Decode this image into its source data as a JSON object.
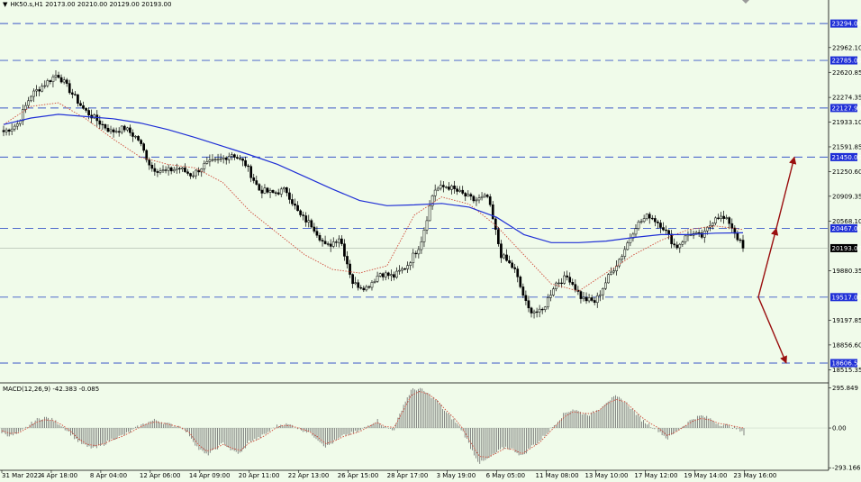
{
  "header": {
    "symbol_line": "HK50.s,H1  20173.00 20210.00 20129.00 20193.00"
  },
  "macd": {
    "label": "MACD(12,26,9) -42.383 -0.085"
  },
  "colors": {
    "background": "#f0fbea",
    "candle": "#000000",
    "ma_slow": "#1f2fd6",
    "ma_fast": "#d04b3a",
    "level_line": "#3a57c8",
    "level_box": "#1f2fd6",
    "arrow": "#9a0f0f",
    "macd_signal": "#d04b3a",
    "macd_hist": "#6a6a6a"
  },
  "chart_data": [
    {
      "type": "candlestick",
      "name": "HK50.s,H1",
      "ylim": [
        18515.35,
        23466
      ],
      "y_ticks": [
        "22962.10",
        "22620.85",
        "22274.35",
        "21933.10",
        "21591.85",
        "21250.60",
        "20909.35",
        "20568.10",
        "19880.35",
        "19197.85",
        "18856.60",
        "18515.35"
      ],
      "x_ticks": [
        "31 Mar 2022",
        "4 Apr 18:00",
        "8 Apr 04:00",
        "12 Apr 06:00",
        "14 Apr 09:00",
        "20 Apr 11:00",
        "22 Apr 13:00",
        "26 Apr 15:00",
        "28 Apr 17:00",
        "3 May 19:00",
        "6 May 05:00",
        "11 May 08:00",
        "13 May 10:00",
        "17 May 12:00",
        "19 May 14:00",
        "23 May 16:00"
      ],
      "levels": [
        23294.0,
        22785.0,
        22127.93,
        21450.0,
        20467.0,
        19517.0,
        18606.58
      ],
      "current_price": 20193.0,
      "path_close": [
        21800,
        21900,
        22300,
        22450,
        22600,
        22350,
        22100,
        21950,
        21800,
        21850,
        21700,
        21300,
        21250,
        21300,
        21200,
        21350,
        21400,
        21500,
        21350,
        21000,
        20950,
        21000,
        20650,
        20500,
        20200,
        20350,
        19700,
        19650,
        19850,
        19800,
        19950,
        20250,
        21000,
        21050,
        20950,
        20850,
        20900,
        20100,
        19900,
        19350,
        19300,
        19700,
        19800,
        19500,
        19450,
        19800,
        20100,
        20500,
        20650,
        20500,
        20200,
        20400,
        20350,
        20650,
        20550,
        20193
      ],
      "ma_slow": [
        21900,
        21990,
        22040,
        22010,
        21980,
        21920,
        21830,
        21720,
        21600,
        21480,
        21350,
        21180,
        21010,
        20850,
        20780,
        20790,
        20810,
        20760,
        20620,
        20380,
        20270,
        20270,
        20290,
        20340,
        20380,
        20380,
        20400,
        20405
      ],
      "ma_fast": [
        21900,
        22150,
        22200,
        21980,
        21700,
        21450,
        21350,
        21300,
        21100,
        20700,
        20400,
        20100,
        19900,
        19850,
        19950,
        20650,
        20900,
        20800,
        20500,
        20100,
        19700,
        19600,
        19850,
        20100,
        20300,
        20450,
        20500,
        20450
      ],
      "scenarios": [
        {
          "from": 19517.0,
          "to": 20467.0
        },
        {
          "from": 20467.0,
          "to": 21450.0
        },
        {
          "from": 19517.0,
          "to": 18606.58
        }
      ]
    },
    {
      "type": "bar",
      "name": "MACD(12,26,9)",
      "y_ticks": [
        "295.849",
        "0.00",
        "-293.166"
      ],
      "ylim": [
        -293.166,
        295.849
      ],
      "hist_path": [
        -30,
        -60,
        -40,
        10,
        60,
        80,
        60,
        20,
        -40,
        -100,
        -140,
        -150,
        -120,
        -80,
        -60,
        -30,
        10,
        40,
        60,
        40,
        20,
        10,
        -50,
        -150,
        -200,
        -160,
        -110,
        -170,
        -190,
        -100,
        -80,
        -40,
        10,
        30,
        20,
        -10,
        -30,
        -80,
        -140,
        -100,
        -60,
        -40,
        -20,
        20,
        60,
        0,
        -10,
        160,
        280,
        290,
        250,
        200,
        120,
        60,
        -20,
        -150,
        -260,
        -230,
        -180,
        -140,
        -160,
        -210,
        -140,
        -100,
        -30,
        40,
        110,
        140,
        110,
        100,
        140,
        200,
        230,
        200,
        130,
        60,
        20,
        -20,
        -80,
        -30,
        20,
        70,
        90,
        70,
        30,
        20,
        0,
        -42.383
      ],
      "signal_path": [
        -20,
        -40,
        -35,
        0,
        40,
        60,
        55,
        25,
        -20,
        -80,
        -120,
        -130,
        -115,
        -85,
        -65,
        -35,
        0,
        30,
        45,
        35,
        20,
        5,
        -35,
        -120,
        -170,
        -150,
        -120,
        -150,
        -165,
        -110,
        -85,
        -50,
        -5,
        20,
        15,
        -5,
        -25,
        -65,
        -115,
        -95,
        -65,
        -45,
        -25,
        10,
        40,
        10,
        5,
        120,
        240,
        270,
        250,
        205,
        135,
        75,
        0,
        -110,
        -210,
        -215,
        -185,
        -150,
        -160,
        -190,
        -150,
        -110,
        -45,
        20,
        85,
        120,
        110,
        105,
        130,
        180,
        210,
        195,
        140,
        80,
        35,
        0,
        -55,
        -30,
        10,
        50,
        70,
        60,
        35,
        25,
        10,
        -0.085
      ]
    }
  ]
}
